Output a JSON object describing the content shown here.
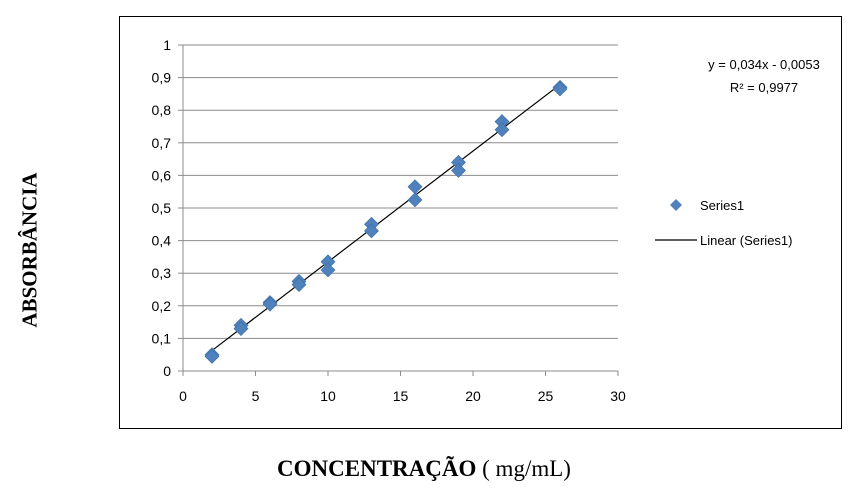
{
  "chart_data": {
    "type": "scatter",
    "xlabel_bold": "CONCENTRAÇÃO",
    "xlabel_rest": " ( mg/mL)",
    "ylabel": "ABSORBÂNCIA",
    "xlim": [
      0,
      30
    ],
    "ylim": [
      0,
      1
    ],
    "x_ticks": [
      "0",
      "5",
      "10",
      "15",
      "20",
      "25",
      "30"
    ],
    "y_ticks": [
      "0",
      "0,1",
      "0,2",
      "0,3",
      "0,4",
      "0,5",
      "0,6",
      "0,7",
      "0,8",
      "0,9",
      "1"
    ],
    "grid": "horizontal",
    "legend_position": "right",
    "series": [
      {
        "name": "Series1",
        "marker": "diamond",
        "color": "#4f81bd",
        "points": [
          {
            "x": 2,
            "y": 0.05
          },
          {
            "x": 2,
            "y": 0.045
          },
          {
            "x": 4,
            "y": 0.14
          },
          {
            "x": 4,
            "y": 0.13
          },
          {
            "x": 6,
            "y": 0.21
          },
          {
            "x": 6,
            "y": 0.205
          },
          {
            "x": 8,
            "y": 0.275
          },
          {
            "x": 8,
            "y": 0.265
          },
          {
            "x": 10,
            "y": 0.335
          },
          {
            "x": 10,
            "y": 0.31
          },
          {
            "x": 13,
            "y": 0.45
          },
          {
            "x": 13,
            "y": 0.43
          },
          {
            "x": 16,
            "y": 0.565
          },
          {
            "x": 16,
            "y": 0.525
          },
          {
            "x": 19,
            "y": 0.64
          },
          {
            "x": 19,
            "y": 0.615
          },
          {
            "x": 22,
            "y": 0.765
          },
          {
            "x": 22,
            "y": 0.74
          },
          {
            "x": 26,
            "y": 0.87
          },
          {
            "x": 26,
            "y": 0.865
          }
        ]
      }
    ],
    "trendline": {
      "name": "Linear (Series1)",
      "slope": 0.034,
      "intercept": -0.0053,
      "x_range": [
        2,
        26
      ],
      "color": "#000000",
      "equation": "y = 0,034x - 0,0053",
      "r2": "R² = 0,9977"
    }
  }
}
